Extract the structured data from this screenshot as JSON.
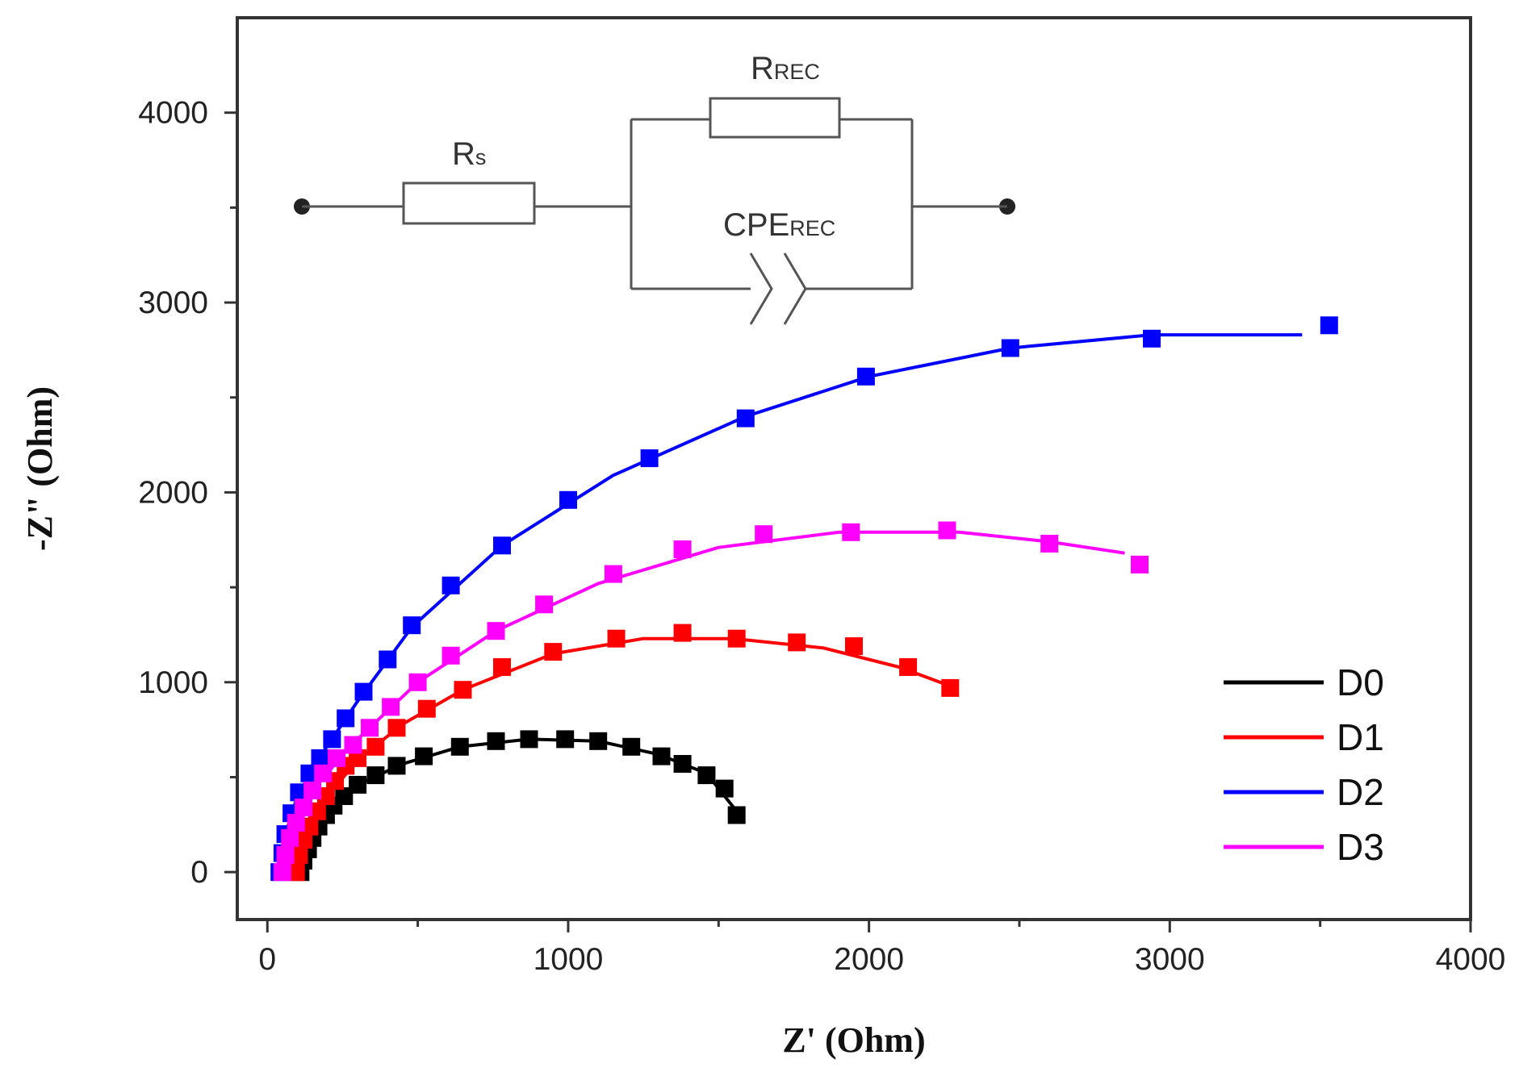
{
  "chart_data": {
    "type": "scatter",
    "title": "",
    "xlabel": "Z' (Ohm)",
    "ylabel": "-Z\" (Ohm)",
    "xlim": [
      -100,
      4000
    ],
    "ylim": [
      -250,
      4500
    ],
    "xticks": [
      "0",
      "1000",
      "2000",
      "3000",
      "4000"
    ],
    "yticks": [
      "0",
      "1000",
      "2000",
      "3000",
      "4000"
    ],
    "legend_position": "bottom-right",
    "series": [
      {
        "name": "D0",
        "color": "#000000",
        "points": [
          [
            110,
            0
          ],
          [
            120,
            60
          ],
          [
            135,
            120
          ],
          [
            150,
            180
          ],
          [
            170,
            240
          ],
          [
            195,
            300
          ],
          [
            220,
            350
          ],
          [
            255,
            400
          ],
          [
            300,
            460
          ],
          [
            360,
            510
          ],
          [
            430,
            560
          ],
          [
            520,
            610
          ],
          [
            640,
            660
          ],
          [
            760,
            690
          ],
          [
            870,
            700
          ],
          [
            990,
            700
          ],
          [
            1100,
            690
          ],
          [
            1210,
            660
          ],
          [
            1310,
            610
          ],
          [
            1380,
            570
          ],
          [
            1460,
            510
          ],
          [
            1520,
            440
          ],
          [
            1560,
            300
          ]
        ],
        "fit": [
          [
            110,
            0
          ],
          [
            140,
            150
          ],
          [
            190,
            290
          ],
          [
            300,
            460
          ],
          [
            450,
            570
          ],
          [
            640,
            660
          ],
          [
            870,
            700
          ],
          [
            1100,
            690
          ],
          [
            1300,
            620
          ],
          [
            1460,
            520
          ],
          [
            1560,
            320
          ]
        ]
      },
      {
        "name": "D1",
        "color": "#ff0000",
        "points": [
          [
            95,
            0
          ],
          [
            105,
            90
          ],
          [
            120,
            170
          ],
          [
            140,
            240
          ],
          [
            165,
            320
          ],
          [
            195,
            400
          ],
          [
            225,
            480
          ],
          [
            260,
            560
          ],
          [
            300,
            600
          ],
          [
            360,
            660
          ],
          [
            430,
            760
          ],
          [
            530,
            860
          ],
          [
            650,
            960
          ],
          [
            780,
            1080
          ],
          [
            950,
            1160
          ],
          [
            1160,
            1230
          ],
          [
            1380,
            1260
          ],
          [
            1560,
            1230
          ],
          [
            1760,
            1210
          ],
          [
            1950,
            1190
          ],
          [
            2130,
            1080
          ],
          [
            2270,
            970
          ]
        ],
        "fit": [
          [
            95,
            0
          ],
          [
            130,
            200
          ],
          [
            200,
            400
          ],
          [
            300,
            590
          ],
          [
            450,
            780
          ],
          [
            650,
            960
          ],
          [
            950,
            1150
          ],
          [
            1250,
            1230
          ],
          [
            1550,
            1230
          ],
          [
            1850,
            1180
          ],
          [
            2100,
            1080
          ],
          [
            2270,
            980
          ]
        ]
      },
      {
        "name": "D2",
        "color": "#0000ff",
        "points": [
          [
            40,
            0
          ],
          [
            50,
            100
          ],
          [
            60,
            200
          ],
          [
            80,
            310
          ],
          [
            105,
            420
          ],
          [
            140,
            520
          ],
          [
            175,
            600
          ],
          [
            215,
            700
          ],
          [
            260,
            810
          ],
          [
            320,
            950
          ],
          [
            400,
            1120
          ],
          [
            480,
            1300
          ],
          [
            610,
            1510
          ],
          [
            780,
            1720
          ],
          [
            1000,
            1960
          ],
          [
            1270,
            2180
          ],
          [
            1590,
            2390
          ],
          [
            1990,
            2610
          ],
          [
            2470,
            2760
          ],
          [
            2940,
            2810
          ],
          [
            3530,
            2880
          ]
        ],
        "fit": [
          [
            40,
            0
          ],
          [
            60,
            200
          ],
          [
            100,
            400
          ],
          [
            180,
            620
          ],
          [
            300,
            900
          ],
          [
            480,
            1290
          ],
          [
            780,
            1720
          ],
          [
            1150,
            2090
          ],
          [
            1590,
            2400
          ],
          [
            2000,
            2610
          ],
          [
            2470,
            2760
          ],
          [
            2940,
            2830
          ],
          [
            3440,
            2830
          ]
        ]
      },
      {
        "name": "D3",
        "color": "#ff00ff",
        "points": [
          [
            50,
            0
          ],
          [
            60,
            90
          ],
          [
            75,
            180
          ],
          [
            95,
            260
          ],
          [
            120,
            340
          ],
          [
            150,
            430
          ],
          [
            185,
            520
          ],
          [
            230,
            600
          ],
          [
            285,
            670
          ],
          [
            340,
            760
          ],
          [
            410,
            870
          ],
          [
            500,
            1000
          ],
          [
            610,
            1140
          ],
          [
            760,
            1270
          ],
          [
            920,
            1410
          ],
          [
            1150,
            1570
          ],
          [
            1380,
            1700
          ],
          [
            1650,
            1780
          ],
          [
            1940,
            1790
          ],
          [
            2260,
            1800
          ],
          [
            2600,
            1730
          ],
          [
            2900,
            1620
          ]
        ],
        "fit": [
          [
            50,
            0
          ],
          [
            80,
            200
          ],
          [
            150,
            430
          ],
          [
            280,
            670
          ],
          [
            500,
            1000
          ],
          [
            760,
            1270
          ],
          [
            1100,
            1520
          ],
          [
            1500,
            1710
          ],
          [
            1900,
            1790
          ],
          [
            2300,
            1790
          ],
          [
            2600,
            1740
          ],
          [
            2850,
            1680
          ]
        ]
      }
    ],
    "inset_circuit": {
      "labels": {
        "rs_main": "R",
        "rs_sub": "s",
        "rrec_main": "R",
        "rrec_sub": "REC",
        "cpe_main": "CPE",
        "cpe_sub": "REC"
      }
    }
  }
}
